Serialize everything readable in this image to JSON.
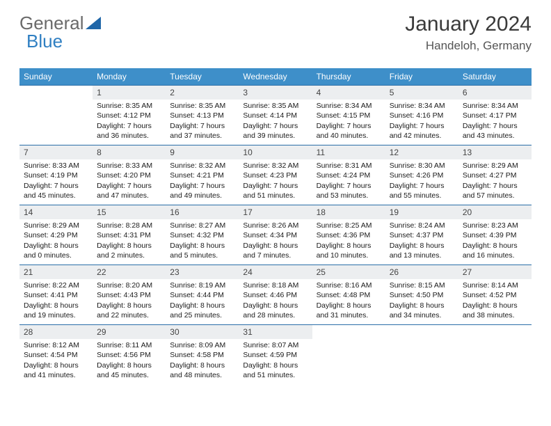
{
  "logo": {
    "part1": "General",
    "part2": "Blue"
  },
  "title": "January 2024",
  "location": "Handeloh, Germany",
  "colors": {
    "header_bg": "#3e8fc9",
    "header_text": "#ffffff",
    "daynum_bg": "#eceef0",
    "row_border": "#2a6ea8",
    "title_color": "#3a3a3a",
    "logo_gray": "#6a6a6a",
    "logo_blue": "#2f7fc2"
  },
  "weekdays": [
    "Sunday",
    "Monday",
    "Tuesday",
    "Wednesday",
    "Thursday",
    "Friday",
    "Saturday"
  ],
  "weeks": [
    [
      {
        "empty": true
      },
      {
        "day": "1",
        "sunrise": "Sunrise: 8:35 AM",
        "sunset": "Sunset: 4:12 PM",
        "dl1": "Daylight: 7 hours",
        "dl2": "and 36 minutes."
      },
      {
        "day": "2",
        "sunrise": "Sunrise: 8:35 AM",
        "sunset": "Sunset: 4:13 PM",
        "dl1": "Daylight: 7 hours",
        "dl2": "and 37 minutes."
      },
      {
        "day": "3",
        "sunrise": "Sunrise: 8:35 AM",
        "sunset": "Sunset: 4:14 PM",
        "dl1": "Daylight: 7 hours",
        "dl2": "and 39 minutes."
      },
      {
        "day": "4",
        "sunrise": "Sunrise: 8:34 AM",
        "sunset": "Sunset: 4:15 PM",
        "dl1": "Daylight: 7 hours",
        "dl2": "and 40 minutes."
      },
      {
        "day": "5",
        "sunrise": "Sunrise: 8:34 AM",
        "sunset": "Sunset: 4:16 PM",
        "dl1": "Daylight: 7 hours",
        "dl2": "and 42 minutes."
      },
      {
        "day": "6",
        "sunrise": "Sunrise: 8:34 AM",
        "sunset": "Sunset: 4:17 PM",
        "dl1": "Daylight: 7 hours",
        "dl2": "and 43 minutes."
      }
    ],
    [
      {
        "day": "7",
        "sunrise": "Sunrise: 8:33 AM",
        "sunset": "Sunset: 4:19 PM",
        "dl1": "Daylight: 7 hours",
        "dl2": "and 45 minutes."
      },
      {
        "day": "8",
        "sunrise": "Sunrise: 8:33 AM",
        "sunset": "Sunset: 4:20 PM",
        "dl1": "Daylight: 7 hours",
        "dl2": "and 47 minutes."
      },
      {
        "day": "9",
        "sunrise": "Sunrise: 8:32 AM",
        "sunset": "Sunset: 4:21 PM",
        "dl1": "Daylight: 7 hours",
        "dl2": "and 49 minutes."
      },
      {
        "day": "10",
        "sunrise": "Sunrise: 8:32 AM",
        "sunset": "Sunset: 4:23 PM",
        "dl1": "Daylight: 7 hours",
        "dl2": "and 51 minutes."
      },
      {
        "day": "11",
        "sunrise": "Sunrise: 8:31 AM",
        "sunset": "Sunset: 4:24 PM",
        "dl1": "Daylight: 7 hours",
        "dl2": "and 53 minutes."
      },
      {
        "day": "12",
        "sunrise": "Sunrise: 8:30 AM",
        "sunset": "Sunset: 4:26 PM",
        "dl1": "Daylight: 7 hours",
        "dl2": "and 55 minutes."
      },
      {
        "day": "13",
        "sunrise": "Sunrise: 8:29 AM",
        "sunset": "Sunset: 4:27 PM",
        "dl1": "Daylight: 7 hours",
        "dl2": "and 57 minutes."
      }
    ],
    [
      {
        "day": "14",
        "sunrise": "Sunrise: 8:29 AM",
        "sunset": "Sunset: 4:29 PM",
        "dl1": "Daylight: 8 hours",
        "dl2": "and 0 minutes."
      },
      {
        "day": "15",
        "sunrise": "Sunrise: 8:28 AM",
        "sunset": "Sunset: 4:31 PM",
        "dl1": "Daylight: 8 hours",
        "dl2": "and 2 minutes."
      },
      {
        "day": "16",
        "sunrise": "Sunrise: 8:27 AM",
        "sunset": "Sunset: 4:32 PM",
        "dl1": "Daylight: 8 hours",
        "dl2": "and 5 minutes."
      },
      {
        "day": "17",
        "sunrise": "Sunrise: 8:26 AM",
        "sunset": "Sunset: 4:34 PM",
        "dl1": "Daylight: 8 hours",
        "dl2": "and 7 minutes."
      },
      {
        "day": "18",
        "sunrise": "Sunrise: 8:25 AM",
        "sunset": "Sunset: 4:36 PM",
        "dl1": "Daylight: 8 hours",
        "dl2": "and 10 minutes."
      },
      {
        "day": "19",
        "sunrise": "Sunrise: 8:24 AM",
        "sunset": "Sunset: 4:37 PM",
        "dl1": "Daylight: 8 hours",
        "dl2": "and 13 minutes."
      },
      {
        "day": "20",
        "sunrise": "Sunrise: 8:23 AM",
        "sunset": "Sunset: 4:39 PM",
        "dl1": "Daylight: 8 hours",
        "dl2": "and 16 minutes."
      }
    ],
    [
      {
        "day": "21",
        "sunrise": "Sunrise: 8:22 AM",
        "sunset": "Sunset: 4:41 PM",
        "dl1": "Daylight: 8 hours",
        "dl2": "and 19 minutes."
      },
      {
        "day": "22",
        "sunrise": "Sunrise: 8:20 AM",
        "sunset": "Sunset: 4:43 PM",
        "dl1": "Daylight: 8 hours",
        "dl2": "and 22 minutes."
      },
      {
        "day": "23",
        "sunrise": "Sunrise: 8:19 AM",
        "sunset": "Sunset: 4:44 PM",
        "dl1": "Daylight: 8 hours",
        "dl2": "and 25 minutes."
      },
      {
        "day": "24",
        "sunrise": "Sunrise: 8:18 AM",
        "sunset": "Sunset: 4:46 PM",
        "dl1": "Daylight: 8 hours",
        "dl2": "and 28 minutes."
      },
      {
        "day": "25",
        "sunrise": "Sunrise: 8:16 AM",
        "sunset": "Sunset: 4:48 PM",
        "dl1": "Daylight: 8 hours",
        "dl2": "and 31 minutes."
      },
      {
        "day": "26",
        "sunrise": "Sunrise: 8:15 AM",
        "sunset": "Sunset: 4:50 PM",
        "dl1": "Daylight: 8 hours",
        "dl2": "and 34 minutes."
      },
      {
        "day": "27",
        "sunrise": "Sunrise: 8:14 AM",
        "sunset": "Sunset: 4:52 PM",
        "dl1": "Daylight: 8 hours",
        "dl2": "and 38 minutes."
      }
    ],
    [
      {
        "day": "28",
        "sunrise": "Sunrise: 8:12 AM",
        "sunset": "Sunset: 4:54 PM",
        "dl1": "Daylight: 8 hours",
        "dl2": "and 41 minutes."
      },
      {
        "day": "29",
        "sunrise": "Sunrise: 8:11 AM",
        "sunset": "Sunset: 4:56 PM",
        "dl1": "Daylight: 8 hours",
        "dl2": "and 45 minutes."
      },
      {
        "day": "30",
        "sunrise": "Sunrise: 8:09 AM",
        "sunset": "Sunset: 4:58 PM",
        "dl1": "Daylight: 8 hours",
        "dl2": "and 48 minutes."
      },
      {
        "day": "31",
        "sunrise": "Sunrise: 8:07 AM",
        "sunset": "Sunset: 4:59 PM",
        "dl1": "Daylight: 8 hours",
        "dl2": "and 51 minutes."
      },
      {
        "empty": true
      },
      {
        "empty": true
      },
      {
        "empty": true
      }
    ]
  ]
}
